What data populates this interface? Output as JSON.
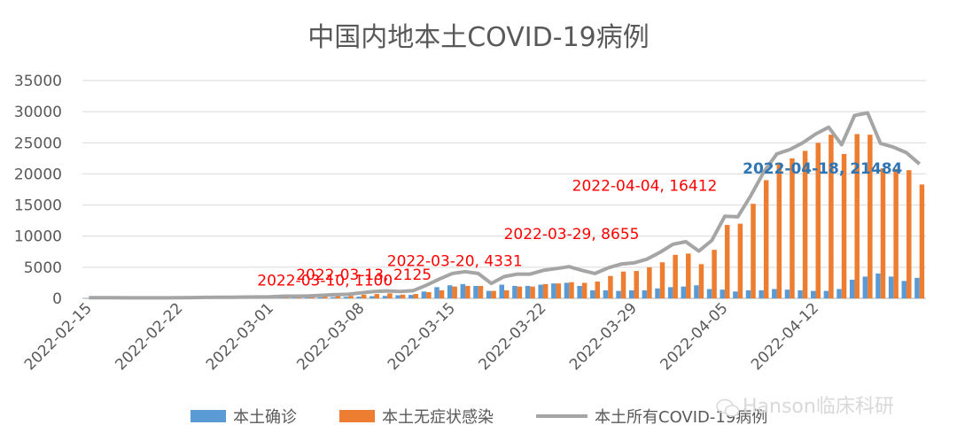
{
  "chart_data": {
    "type": "bar",
    "title": "中国内地本土COVID-19病例",
    "xlabel": "",
    "ylabel": "",
    "ylim": [
      0,
      35000
    ],
    "yticks": [
      "35000",
      "30000",
      "25000",
      "20000",
      "15000",
      "10000",
      "5000",
      "0"
    ],
    "x_start": "2022-02-15",
    "xticks": [
      "2022-02-15",
      "2022-02-22",
      "2022-03-01",
      "2022-03-08",
      "2022-03-15",
      "2022-03-22",
      "2022-03-29",
      "2022-04-05",
      "2022-04-12"
    ],
    "grid": true,
    "legend_position": "bottom",
    "series": [
      {
        "name": "本土确诊",
        "type": "bar",
        "color": "#5b9bd5",
        "values": [
          40,
          45,
          40,
          35,
          35,
          30,
          40,
          50,
          60,
          70,
          80,
          90,
          100,
          110,
          120,
          150,
          150,
          160,
          180,
          200,
          250,
          280,
          350,
          400,
          500,
          550,
          1100,
          1800,
          2100,
          2300,
          2000,
          1200,
          2200,
          2000,
          2000,
          2200,
          2400,
          2500,
          2000,
          1300,
          1300,
          1200,
          1300,
          1300,
          1600,
          1800,
          1900,
          2100,
          1500,
          1400,
          1100,
          1300,
          1300,
          1500,
          1400,
          1300,
          1200,
          1200,
          1500,
          3000,
          3500,
          4000,
          3500,
          2800,
          3300
        ]
      },
      {
        "name": "本土无症状感染",
        "type": "bar",
        "color": "#ed7d31",
        "values": [
          50,
          60,
          55,
          45,
          45,
          40,
          50,
          60,
          70,
          80,
          90,
          100,
          110,
          120,
          140,
          200,
          200,
          250,
          300,
          400,
          400,
          600,
          700,
          800,
          600,
          700,
          1000,
          1300,
          1900,
          2000,
          2000,
          1200,
          1300,
          1900,
          1900,
          2300,
          2400,
          2600,
          2500,
          2700,
          3600,
          4300,
          4400,
          5000,
          5800,
          7000,
          7200,
          5500,
          7800,
          11800,
          12000,
          15200,
          19000,
          21700,
          22500,
          23700,
          25000,
          26300,
          23200,
          26400,
          26300,
          20900,
          20800,
          20600,
          18300
        ]
      },
      {
        "name": "本土所有COVID-19病例",
        "type": "line",
        "color": "#a5a5a5",
        "values": [
          100,
          100,
          100,
          90,
          90,
          80,
          90,
          110,
          130,
          150,
          170,
          190,
          210,
          230,
          250,
          350,
          350,
          400,
          500,
          600,
          650,
          900,
          1100,
          1200,
          1100,
          1250,
          2100,
          3100,
          4000,
          4300,
          4000,
          2400,
          3500,
          3900,
          3900,
          4500,
          4800,
          5100,
          4500,
          4000,
          4900,
          5500,
          5700,
          6300,
          7400,
          8700,
          9100,
          7600,
          9300,
          13200,
          13100,
          16500,
          20300,
          23200,
          23900,
          25000,
          26400,
          27500,
          24700,
          29400,
          29800,
          24900,
          24300,
          23400,
          21600
        ]
      }
    ],
    "annotations": [
      {
        "label": "2022-03-10, 1100",
        "color": "#ff0000"
      },
      {
        "label": "2022-03-13, 2125",
        "color": "#ff0000"
      },
      {
        "label": "2022-03-20, 4331",
        "color": "#ff0000"
      },
      {
        "label": "2022-03-29, 8655",
        "color": "#ff0000"
      },
      {
        "label": "2022-04-04, 16412",
        "color": "#ff0000"
      },
      {
        "label": "2022-04-18, 21484",
        "color": "#2e75b6"
      }
    ]
  },
  "watermark": "Hanson临床科研",
  "watermark_icon": "wechat-icon"
}
